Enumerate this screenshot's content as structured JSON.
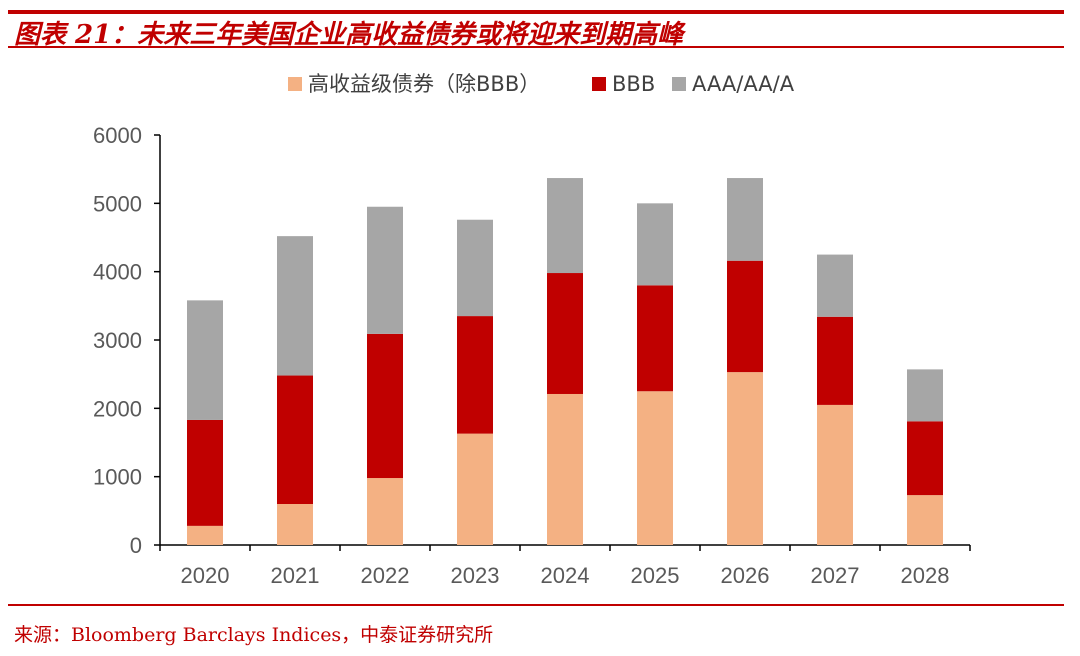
{
  "figure": {
    "title": "图表 21：未来三年美国企业高收益债券或将迎来到期高峰",
    "source": "来源：Bloomberg Barclays Indices，中泰证券研究所"
  },
  "colors": {
    "accent": "#c00000",
    "high_yield": "#f4b183",
    "bbb": "#c00000",
    "aaa": "#a6a6a6"
  },
  "chart_data": {
    "type": "bar",
    "stacked": true,
    "categories": [
      "2020",
      "2021",
      "2022",
      "2023",
      "2024",
      "2025",
      "2026",
      "2027",
      "2028"
    ],
    "series": [
      {
        "name": "高收益级债券（除BBB）",
        "color": "#f4b183",
        "values": [
          280,
          600,
          980,
          1630,
          2210,
          2250,
          2530,
          2050,
          730
        ]
      },
      {
        "name": "BBB",
        "color": "#c00000",
        "values": [
          1550,
          1880,
          2110,
          1720,
          1770,
          1550,
          1630,
          1290,
          1080
        ]
      },
      {
        "name": "AAA/AA/A",
        "color": "#a6a6a6",
        "values": [
          1750,
          2040,
          1860,
          1410,
          1390,
          1200,
          1210,
          910,
          760
        ]
      }
    ],
    "ylim": [
      0,
      6000
    ],
    "yticks": [
      0,
      1000,
      2000,
      3000,
      4000,
      5000,
      6000
    ],
    "grid": false,
    "legend_position": "top"
  }
}
